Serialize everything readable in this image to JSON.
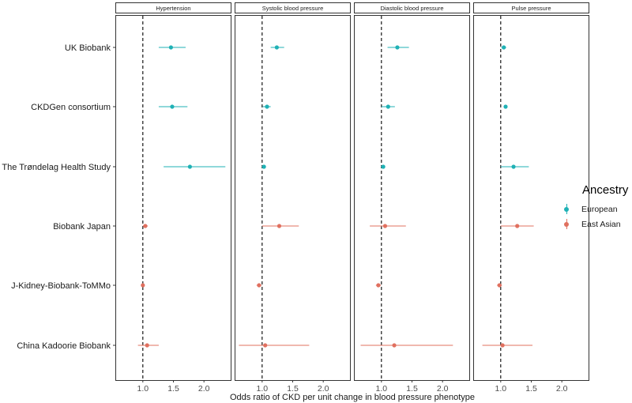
{
  "chart_data": {
    "type": "scatter",
    "subtype": "forest-plot",
    "xlabel": "Odds ratio of CKD per unit change in blood pressure phenotype",
    "panels": [
      "Hypertension",
      "Systolic blood pressure",
      "Diastolic blood pressure",
      "Pulse pressure"
    ],
    "studies": [
      "UK Biobank",
      "CKDGen consortium",
      "The Trøndelag Health Study",
      "Biobank Japan",
      "J-Kidney-Biobank-ToMMo",
      "China Kadoorie Biobank"
    ],
    "x_ticks": [
      "1.0",
      "1.5",
      "2.0"
    ],
    "xlim": [
      0.55,
      2.45
    ],
    "reference_line": 1.0,
    "legend": {
      "title": "Ancestry",
      "position": "right",
      "entries": [
        {
          "name": "European",
          "color": "#1fb1b5"
        },
        {
          "name": "East Asian",
          "color": "#e0705f"
        }
      ]
    },
    "series": [
      {
        "panel": "Hypertension",
        "study": "UK Biobank",
        "ancestry": "European",
        "or": 1.46,
        "lo": 1.26,
        "hi": 1.7
      },
      {
        "panel": "Hypertension",
        "study": "CKDGen consortium",
        "ancestry": "European",
        "or": 1.48,
        "lo": 1.26,
        "hi": 1.73
      },
      {
        "panel": "Hypertension",
        "study": "The Trøndelag Health Study",
        "ancestry": "European",
        "or": 1.77,
        "lo": 1.34,
        "hi": 2.35
      },
      {
        "panel": "Hypertension",
        "study": "Biobank Japan",
        "ancestry": "East Asian",
        "or": 1.04,
        "lo": 1.0,
        "hi": 1.08
      },
      {
        "panel": "Hypertension",
        "study": "J-Kidney-Biobank-ToMMo",
        "ancestry": "East Asian",
        "or": 1.0,
        "lo": 0.98,
        "hi": 1.02
      },
      {
        "panel": "Hypertension",
        "study": "China Kadoorie Biobank",
        "ancestry": "East Asian",
        "or": 1.07,
        "lo": 0.92,
        "hi": 1.26
      },
      {
        "panel": "Systolic blood pressure",
        "study": "UK Biobank",
        "ancestry": "European",
        "or": 1.24,
        "lo": 1.14,
        "hi": 1.36
      },
      {
        "panel": "Systolic blood pressure",
        "study": "CKDGen consortium",
        "ancestry": "European",
        "or": 1.08,
        "lo": 1.01,
        "hi": 1.14
      },
      {
        "panel": "Systolic blood pressure",
        "study": "The Trøndelag Health Study",
        "ancestry": "European",
        "or": 1.03,
        "lo": 1.0,
        "hi": 1.05
      },
      {
        "panel": "Systolic blood pressure",
        "study": "Biobank Japan",
        "ancestry": "East Asian",
        "or": 1.28,
        "lo": 1.0,
        "hi": 1.6
      },
      {
        "panel": "Systolic blood pressure",
        "study": "J-Kidney-Biobank-ToMMo",
        "ancestry": "East Asian",
        "or": 0.95,
        "lo": 0.91,
        "hi": 0.99
      },
      {
        "panel": "Systolic blood pressure",
        "study": "China Kadoorie Biobank",
        "ancestry": "East Asian",
        "or": 1.05,
        "lo": 0.62,
        "hi": 1.77
      },
      {
        "panel": "Diastolic blood pressure",
        "study": "UK Biobank",
        "ancestry": "European",
        "or": 1.26,
        "lo": 1.1,
        "hi": 1.45
      },
      {
        "panel": "Diastolic blood pressure",
        "study": "CKDGen consortium",
        "ancestry": "European",
        "or": 1.11,
        "lo": 1.0,
        "hi": 1.22
      },
      {
        "panel": "Diastolic blood pressure",
        "study": "The Trøndelag Health Study",
        "ancestry": "European",
        "or": 1.03,
        "lo": 0.99,
        "hi": 1.06
      },
      {
        "panel": "Diastolic blood pressure",
        "study": "Biobank Japan",
        "ancestry": "East Asian",
        "or": 1.06,
        "lo": 0.81,
        "hi": 1.4
      },
      {
        "panel": "Diastolic blood pressure",
        "study": "J-Kidney-Biobank-ToMMo",
        "ancestry": "East Asian",
        "or": 0.95,
        "lo": 0.91,
        "hi": 0.99
      },
      {
        "panel": "Diastolic blood pressure",
        "study": "China Kadoorie Biobank",
        "ancestry": "East Asian",
        "or": 1.21,
        "lo": 0.66,
        "hi": 2.17
      },
      {
        "panel": "Pulse pressure",
        "study": "UK Biobank",
        "ancestry": "European",
        "or": 1.05,
        "lo": 1.01,
        "hi": 1.09
      },
      {
        "panel": "Pulse pressure",
        "study": "CKDGen consortium",
        "ancestry": "European",
        "or": 1.08,
        "lo": 1.05,
        "hi": 1.1
      },
      {
        "panel": "Pulse pressure",
        "study": "The Trøndelag Health Study",
        "ancestry": "European",
        "or": 1.21,
        "lo": 1.0,
        "hi": 1.46
      },
      {
        "panel": "Pulse pressure",
        "study": "Biobank Japan",
        "ancestry": "East Asian",
        "or": 1.27,
        "lo": 1.0,
        "hi": 1.54
      },
      {
        "panel": "Pulse pressure",
        "study": "J-Kidney-Biobank-ToMMo",
        "ancestry": "East Asian",
        "or": 0.98,
        "lo": 0.94,
        "hi": 1.02
      },
      {
        "panel": "Pulse pressure",
        "study": "China Kadoorie Biobank",
        "ancestry": "East Asian",
        "or": 1.03,
        "lo": 0.7,
        "hi": 1.52
      }
    ]
  }
}
